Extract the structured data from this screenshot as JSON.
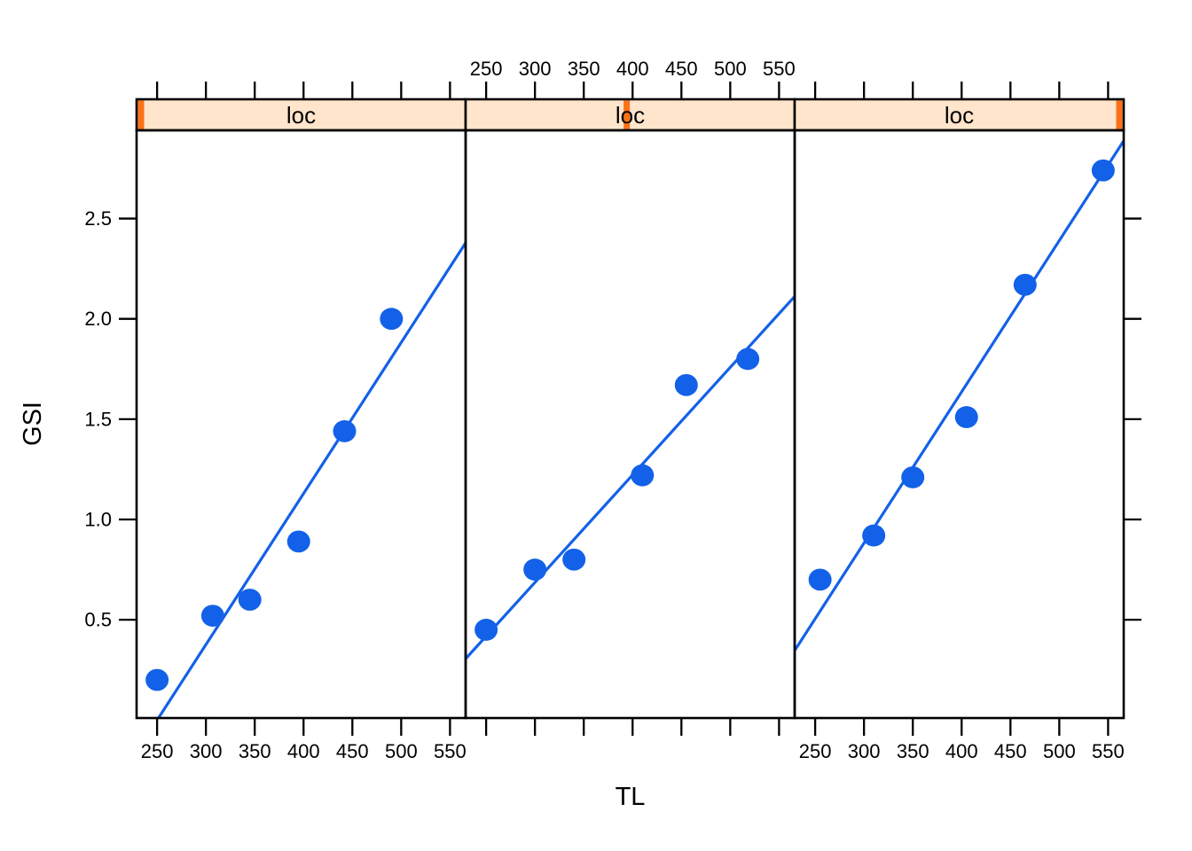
{
  "colors": {
    "background": "#FFFFFF",
    "frame": "#000000",
    "text": "#000000",
    "point_fill": "#1361E8",
    "lm_line": "#1361E8",
    "strip_background": "#FFE5CC",
    "strip_marker": "#FB7117"
  },
  "chart_data": {
    "type": "scatter",
    "title": "",
    "xlabel": "TL",
    "ylabel": "GSI",
    "facet_variable": "loc",
    "x_domain": [
      229,
      566
    ],
    "y_domain": [
      0.01,
      2.94
    ],
    "x_ticks": [
      "250",
      "300",
      "350",
      "400",
      "450",
      "500",
      "550"
    ],
    "y_ticks": [
      "0.5",
      "1.0",
      "1.5",
      "2.0",
      "2.5"
    ],
    "panels": [
      {
        "strip_label": "loc",
        "strip_marker_at": 229,
        "points": [
          [
            250,
            0.2
          ],
          [
            307,
            0.52
          ],
          [
            345,
            0.6
          ],
          [
            395,
            0.89
          ],
          [
            442,
            1.44
          ],
          [
            490,
            2.0
          ]
        ],
        "lm": {
          "slope": 0.00753,
          "intercept": -1.883
        }
      },
      {
        "strip_label": "loc",
        "strip_marker_at": 394,
        "points": [
          [
            250,
            0.45
          ],
          [
            300,
            0.75
          ],
          [
            340,
            0.8
          ],
          [
            410,
            1.22
          ],
          [
            455,
            1.67
          ],
          [
            518,
            1.8
          ]
        ],
        "lm": {
          "slope": 0.00536,
          "intercept": -0.922
        }
      },
      {
        "strip_label": "loc",
        "strip_marker_at": 566,
        "points": [
          [
            255,
            0.7
          ],
          [
            310,
            0.92
          ],
          [
            350,
            1.21
          ],
          [
            405,
            1.51
          ],
          [
            465,
            2.17
          ],
          [
            545,
            2.74
          ]
        ],
        "lm": {
          "slope": 0.00754,
          "intercept": -1.38
        }
      }
    ],
    "layout_hints": {
      "panels_per_row": 3,
      "x_tick_label_sides": [
        "bottom",
        "top",
        "bottom"
      ],
      "y_tick_labels_side": "left",
      "ticks_on_right_edge": true,
      "ticks_on_top_edge": true,
      "grid": false,
      "legend": "none"
    }
  }
}
